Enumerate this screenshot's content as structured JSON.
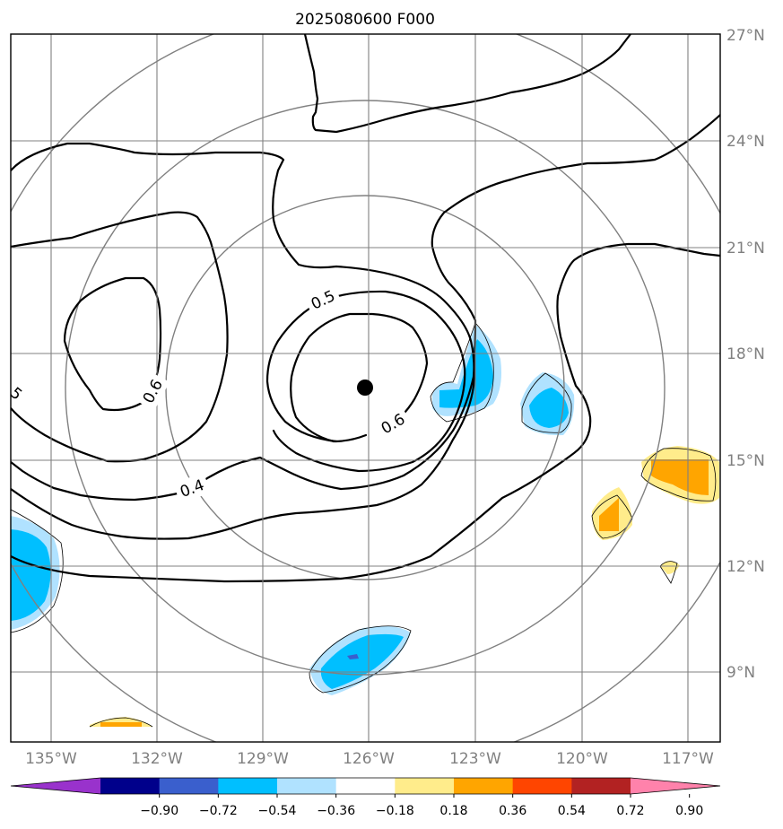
{
  "title": "2025080600 F000",
  "map": {
    "lon_labels": [
      "135°W",
      "132°W",
      "129°W",
      "126°W",
      "123°W",
      "120°W",
      "117°W"
    ],
    "lat_labels": [
      "27°N",
      "24°N",
      "21°N",
      "18°N",
      "15°N",
      "12°N",
      "9°N"
    ],
    "center_marker": {
      "lon": -126,
      "lat": 17
    }
  },
  "contours": {
    "labels": [
      "0.5",
      "0.6",
      "0.6",
      "0.4",
      "5"
    ]
  },
  "colorbar": {
    "ticks": [
      "−0.90",
      "−0.72",
      "−0.54",
      "−0.36",
      "−0.18",
      "0.18",
      "0.36",
      "0.54",
      "0.72",
      "0.90"
    ],
    "colors": [
      "#9932cc",
      "#00008b",
      "#3a5fcd",
      "#00bfff",
      "#b0e2ff",
      "#ffffff",
      "#ffec8b",
      "#ffa500",
      "#ff4500",
      "#b22222",
      "#ff82ab"
    ],
    "extend": "both"
  },
  "colors": {
    "neg_strong": "#00bfff",
    "neg_light": "#b0e2ff",
    "neg_core": "#3a5fcd",
    "pos_light": "#ffec8b",
    "pos_strong": "#ffa500"
  }
}
